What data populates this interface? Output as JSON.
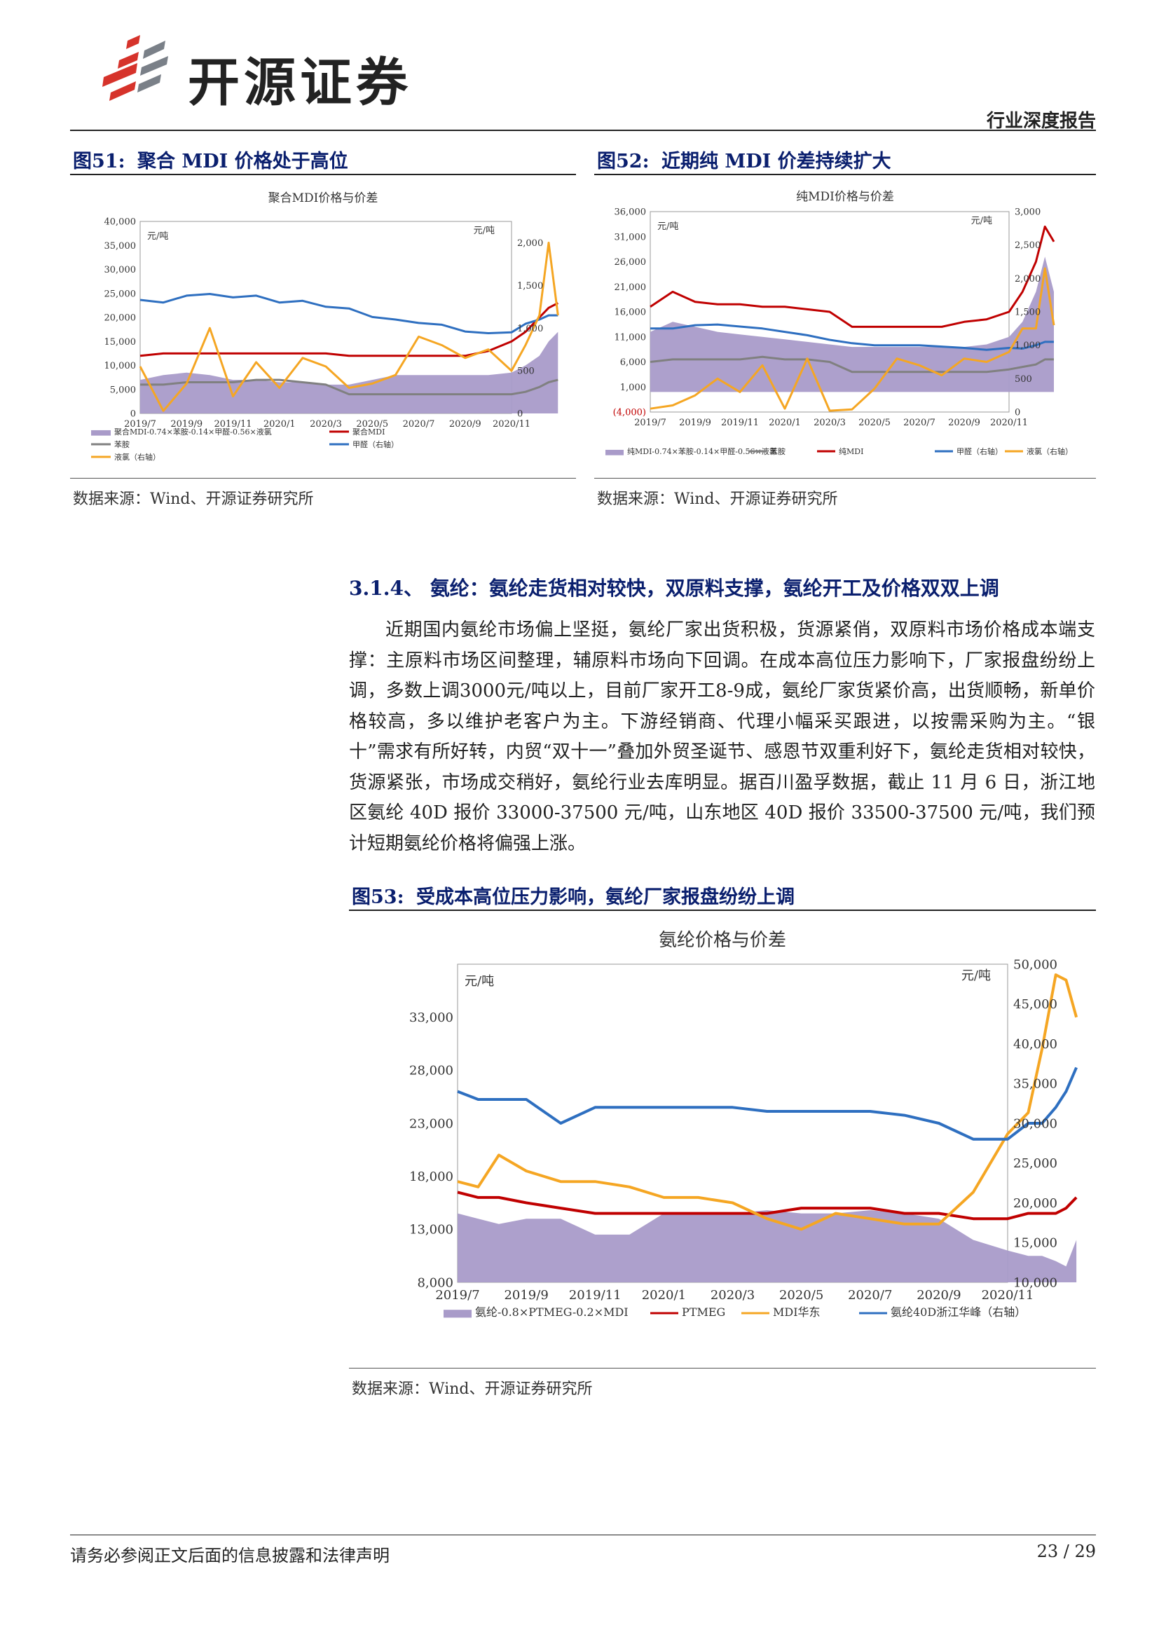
{
  "header": {
    "company": "开源证券",
    "report_type": "行业深度报告"
  },
  "figures": [
    {
      "id": "fig51",
      "label": "图51:",
      "title": "聚合 MDI 价格处于高位",
      "source": "数据来源：Wind、开源证券研究所"
    },
    {
      "id": "fig52",
      "label": "图52:",
      "title": "近期纯 MDI 价差持续扩大",
      "source": "数据来源：Wind、开源证券研究所"
    },
    {
      "id": "fig53",
      "label": "图53:",
      "title": "受成本高位压力影响，氨纶厂家报盘纷纷上调",
      "source": "数据来源：Wind、开源证券研究所"
    }
  ],
  "section": {
    "heading": "3.1.4、 氨纶：氨纶走货相对较快，双原料支撑，氨纶开工及价格双双上调",
    "paragraph": "近期国内氨纶市场偏上坚挺，氨纶厂家出货积极，货源紧俏，双原料市场价格成本端支撑：主原料市场区间整理，辅原料市场向下回调。在成本高位压力影响下，厂家报盘纷纷上调，多数上调3000元/吨以上，目前厂家开工8-9成，氨纶厂家货紧价高，出货顺畅，新单价格较高，多以维护老客户为主。下游经销商、代理小幅采买跟进，以按需采购为主。“银十”需求有所好转，内贸“双十一”叠加外贸圣诞节、感恩节双重利好下，氨纶走货相对较快，货源紧张，市场成交稍好，氨纶行业去库明显。据百川盈孚数据，截止 11 月 6 日，浙江地区氨纶 40D 报价 33000-37500 元/吨，山东地区 40D 报价 33500-37500 元/吨，我们预计短期氨纶价格将偏强上涨。"
  },
  "footer": {
    "disclaimer": "请务必参阅正文后面的信息披露和法律声明",
    "page": "23 / 29"
  },
  "colors": {
    "area": "#a99bc9",
    "red": "#c00000",
    "orange": "#f5a623",
    "blue": "#2e6fc0",
    "gray": "#808080",
    "title_blue": "#0a1f6e"
  },
  "chart_data": [
    {
      "type": "line",
      "title": "聚合MDI价格与价差",
      "unit_left": "元/吨",
      "unit_right": "元/吨",
      "x_ticks": [
        "2019/7",
        "2019/9",
        "2019/11",
        "2020/1",
        "2020/3",
        "2020/5",
        "2020/7",
        "2020/9",
        "2020/11"
      ],
      "ylim_left": [
        0,
        40000
      ],
      "yticks_left": [
        "0",
        "5,000",
        "10,000",
        "15,000",
        "20,000",
        "25,000",
        "30,000",
        "35,000",
        "40,000"
      ],
      "ylim_right": [
        0,
        2250
      ],
      "yticks_right": [
        "0",
        "500",
        "1,000",
        "1,500",
        "2,000"
      ],
      "x": [
        0,
        0.5,
        1,
        1.5,
        2,
        2.5,
        3,
        3.5,
        4,
        4.5,
        5,
        5.5,
        6,
        6.5,
        7,
        7.5,
        8,
        8.3,
        8.6,
        8.8,
        9
      ],
      "series": [
        {
          "name": "聚合MDI-0.74×苯胺-0.14×甲醛-0.56×液氯",
          "kind": "area",
          "axis": "left",
          "color": "#a99bc9",
          "values": [
            7000,
            8000,
            8500,
            8000,
            7000,
            7000,
            6500,
            6500,
            6000,
            6000,
            7000,
            8000,
            8000,
            8000,
            8000,
            8000,
            8500,
            10000,
            12000,
            15000,
            17000
          ]
        },
        {
          "name": "苯胺",
          "kind": "line",
          "axis": "left",
          "color": "#808080",
          "values": [
            6000,
            6000,
            6500,
            6500,
            6500,
            7000,
            7000,
            6500,
            6000,
            4000,
            4000,
            4000,
            4000,
            4000,
            4000,
            4000,
            4000,
            4500,
            5500,
            6500,
            7000
          ]
        },
        {
          "name": "聚合MDI",
          "kind": "line",
          "axis": "left",
          "color": "#c00000",
          "values": [
            12000,
            12500,
            12500,
            12500,
            12500,
            12500,
            12500,
            12500,
            12500,
            12000,
            12000,
            12000,
            12000,
            12000,
            12000,
            13000,
            15000,
            17000,
            20000,
            22000,
            23000
          ]
        },
        {
          "name": "甲醛（右轴）",
          "kind": "line",
          "axis": "right",
          "color": "#2e6fc0",
          "values": [
            1330,
            1300,
            1380,
            1400,
            1360,
            1380,
            1300,
            1320,
            1250,
            1230,
            1130,
            1100,
            1060,
            1040,
            960,
            940,
            950,
            1050,
            1100,
            1150,
            1150
          ]
        },
        {
          "name": "液氯（右轴）",
          "kind": "line",
          "axis": "right",
          "color": "#f5a623",
          "values": [
            550,
            30,
            350,
            1000,
            200,
            600,
            300,
            650,
            550,
            300,
            350,
            450,
            900,
            800,
            650,
            750,
            500,
            800,
            1150,
            2000,
            1150
          ]
        }
      ]
    },
    {
      "type": "line",
      "title": "纯MDI价格与价差",
      "unit_left": "元/吨",
      "unit_right": "元/吨",
      "x_ticks": [
        "2019/7",
        "2019/9",
        "2019/11",
        "2020/1",
        "2020/3",
        "2020/5",
        "2020/7",
        "2020/9",
        "2020/11"
      ],
      "ylim_left": [
        -4000,
        36000
      ],
      "yticks_left": [
        "(4,000)",
        "1,000",
        "6,000",
        "11,000",
        "16,000",
        "21,000",
        "26,000",
        "31,000",
        "36,000"
      ],
      "ylim_right": [
        0,
        3000
      ],
      "yticks_right": [
        "0",
        "500",
        "1,000",
        "1,500",
        "2,000",
        "2,500",
        "3,000"
      ],
      "x": [
        0,
        0.5,
        1,
        1.5,
        2,
        2.5,
        3,
        3.5,
        4,
        4.5,
        5,
        5.5,
        6,
        6.5,
        7,
        7.5,
        8,
        8.3,
        8.6,
        8.8,
        9
      ],
      "series": [
        {
          "name": "纯MDI-0.74×苯胺-0.14×甲醛-0.56×液氯",
          "kind": "area",
          "axis": "left",
          "color": "#a99bc9",
          "values": [
            12000,
            14000,
            13000,
            12000,
            11500,
            11000,
            10500,
            10000,
            9500,
            9000,
            9000,
            9000,
            9000,
            9000,
            9000,
            9500,
            11000,
            14000,
            20000,
            27000,
            20000
          ]
        },
        {
          "name": "苯胺",
          "kind": "line",
          "axis": "left",
          "color": "#808080",
          "values": [
            6000,
            6500,
            6500,
            6500,
            6500,
            7000,
            6500,
            6500,
            6000,
            4000,
            4000,
            4000,
            4000,
            4000,
            4000,
            4000,
            4500,
            5000,
            5500,
            6500,
            6500
          ]
        },
        {
          "name": "纯MDI",
          "kind": "line",
          "axis": "left",
          "color": "#c00000",
          "values": [
            17000,
            20000,
            18000,
            17500,
            17500,
            17000,
            17000,
            16500,
            16000,
            13000,
            13000,
            13000,
            13000,
            13000,
            14000,
            14500,
            16000,
            20000,
            26000,
            33000,
            30000
          ]
        },
        {
          "name": "甲醛（右轴）",
          "kind": "line",
          "axis": "right",
          "color": "#2e6fc0",
          "values": [
            1250,
            1250,
            1300,
            1310,
            1280,
            1250,
            1200,
            1150,
            1080,
            1030,
            1000,
            1000,
            1000,
            980,
            960,
            930,
            960,
            950,
            1000,
            1050,
            1050
          ]
        },
        {
          "name": "液氯（右轴）",
          "kind": "line",
          "axis": "right",
          "color": "#f5a623",
          "values": [
            50,
            100,
            250,
            500,
            300,
            700,
            50,
            800,
            20,
            40,
            350,
            800,
            700,
            550,
            800,
            750,
            900,
            1250,
            1250,
            2150,
            1300
          ]
        }
      ]
    },
    {
      "type": "line",
      "title": "氨纶价格与价差",
      "unit_left": "元/吨",
      "unit_right": "元/吨",
      "x_ticks": [
        "2019/7",
        "2019/9",
        "2019/11",
        "2020/1",
        "2020/3",
        "2020/5",
        "2020/7",
        "2020/9",
        "2020/11"
      ],
      "ylim_left": [
        8000,
        38000
      ],
      "yticks_left": [
        "8,000",
        "13,000",
        "18,000",
        "23,000",
        "28,000",
        "33,000"
      ],
      "ylim_right": [
        10000,
        50000
      ],
      "yticks_right": [
        "10,000",
        "15,000",
        "20,000",
        "25,000",
        "30,000",
        "35,000",
        "40,000",
        "45,000",
        "50,000"
      ],
      "x": [
        0,
        0.3,
        0.6,
        1,
        1.5,
        2,
        2.5,
        3,
        3.5,
        4,
        4.5,
        5,
        5.5,
        6,
        6.5,
        7,
        7.5,
        8,
        8.3,
        8.5,
        8.7,
        8.85,
        9
      ],
      "series": [
        {
          "name": "氨纶-0.8×PTMEG-0.2×MDI",
          "kind": "area",
          "axis": "left",
          "color": "#a99bc9",
          "values": [
            14500,
            14000,
            13500,
            14000,
            14000,
            12500,
            12500,
            14500,
            14500,
            14500,
            14800,
            14500,
            14500,
            14800,
            14500,
            14000,
            12000,
            11000,
            10500,
            10500,
            10000,
            9500,
            12000
          ]
        },
        {
          "name": "PTMEG",
          "kind": "line",
          "axis": "left",
          "color": "#c00000",
          "values": [
            16500,
            16000,
            16000,
            15500,
            15000,
            14500,
            14500,
            14500,
            14500,
            14500,
            14500,
            15000,
            15000,
            15000,
            14500,
            14500,
            14000,
            14000,
            14500,
            14500,
            14500,
            15000,
            16000
          ]
        },
        {
          "name": "MDI华东",
          "kind": "line",
          "axis": "left",
          "color": "#f5a623",
          "values": [
            17500,
            17000,
            20000,
            18500,
            17500,
            17500,
            17000,
            16000,
            16000,
            15500,
            14000,
            13000,
            14500,
            14000,
            13500,
            13500,
            16500,
            22000,
            24000,
            30000,
            37000,
            36500,
            33000
          ]
        },
        {
          "name": "氨纶40D浙江华峰（右轴）",
          "kind": "line",
          "axis": "right",
          "color": "#2e6fc0",
          "values": [
            34000,
            33000,
            33000,
            33000,
            30000,
            32000,
            32000,
            32000,
            32000,
            32000,
            31500,
            31500,
            31500,
            31500,
            31000,
            30000,
            28000,
            28000,
            30000,
            30000,
            32000,
            34000,
            37000
          ]
        }
      ]
    }
  ]
}
